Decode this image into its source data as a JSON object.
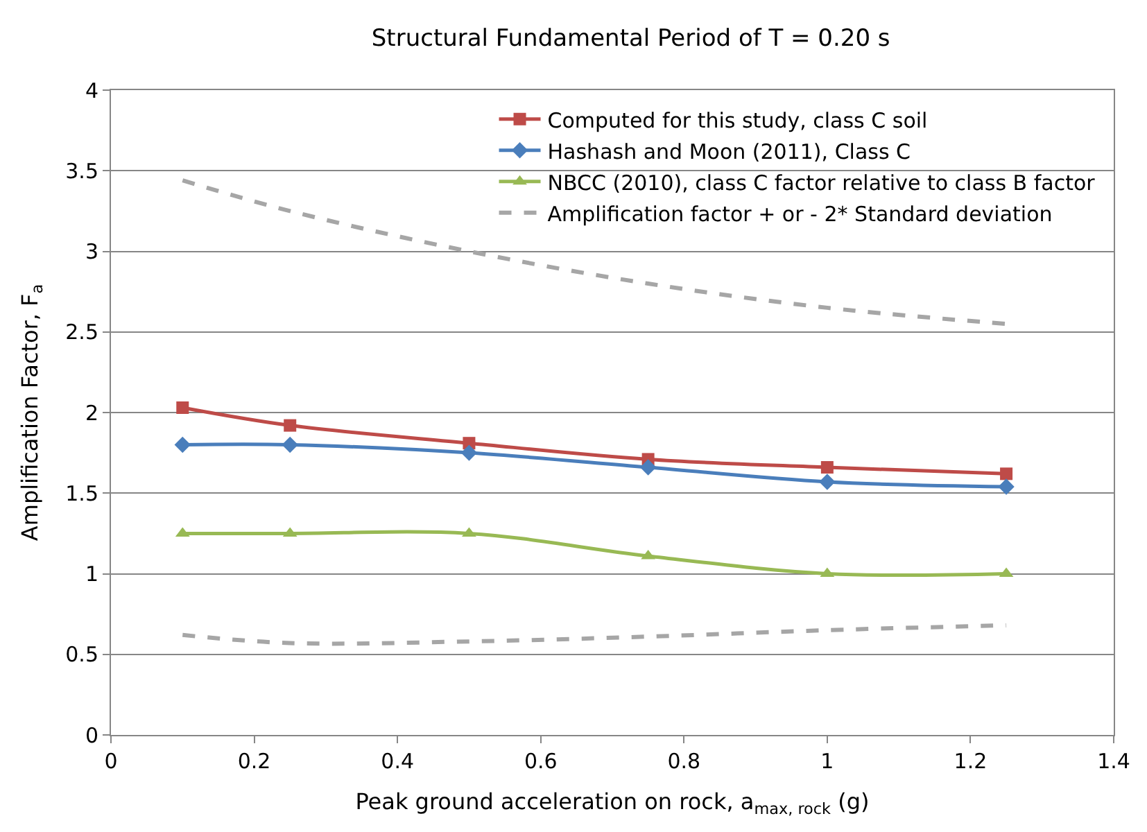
{
  "chart_data": {
    "type": "line",
    "title": "Structural Fundamental Period of T = 0.20 s",
    "xlabel": "Peak ground acceleration on rock, a$_{max, rock}$ (g)",
    "ylabel": "Amplification Factor, F$_{a}$",
    "x": [
      0.1,
      0.25,
      0.5,
      0.75,
      1.0,
      1.25
    ],
    "series": [
      {
        "name": "Computed for this study, class C soil",
        "color": "#be4b48",
        "marker": "square",
        "line_style": "solid",
        "values": [
          2.03,
          1.92,
          1.81,
          1.71,
          1.66,
          1.62
        ]
      },
      {
        "name": "Hashash and Moon (2011), Class C",
        "color": "#4a7ebb",
        "marker": "diamond",
        "line_style": "solid",
        "values": [
          1.8,
          1.8,
          1.75,
          1.66,
          1.57,
          1.54
        ]
      },
      {
        "name": "NBCC (2010), class C factor relative to class B factor",
        "color": "#98b954",
        "marker": "triangle",
        "line_style": "solid",
        "values": [
          1.25,
          1.25,
          1.25,
          1.11,
          1.0,
          1.0
        ]
      },
      {
        "name": "Amplification factor + or - 2* Standard deviation",
        "color": "#a6a6a6",
        "marker": "none",
        "line_style": "dashed",
        "values": [
          3.44,
          3.25,
          3.0,
          2.8,
          2.65,
          2.55
        ]
      },
      {
        "color": "#a6a6a6",
        "marker": "none",
        "line_style": "dashed",
        "values": [
          0.62,
          0.57,
          0.58,
          0.61,
          0.65,
          0.68
        ]
      }
    ],
    "xlim": [
      0,
      1.4
    ],
    "xticks": [
      0,
      0.2,
      0.4,
      0.6,
      0.8,
      1,
      1.2,
      1.4
    ],
    "ylim": [
      0,
      4
    ],
    "yticks": [
      0,
      0.5,
      1,
      1.5,
      2,
      2.5,
      3,
      3.5,
      4
    ],
    "grid": "y",
    "legend": "top right"
  }
}
